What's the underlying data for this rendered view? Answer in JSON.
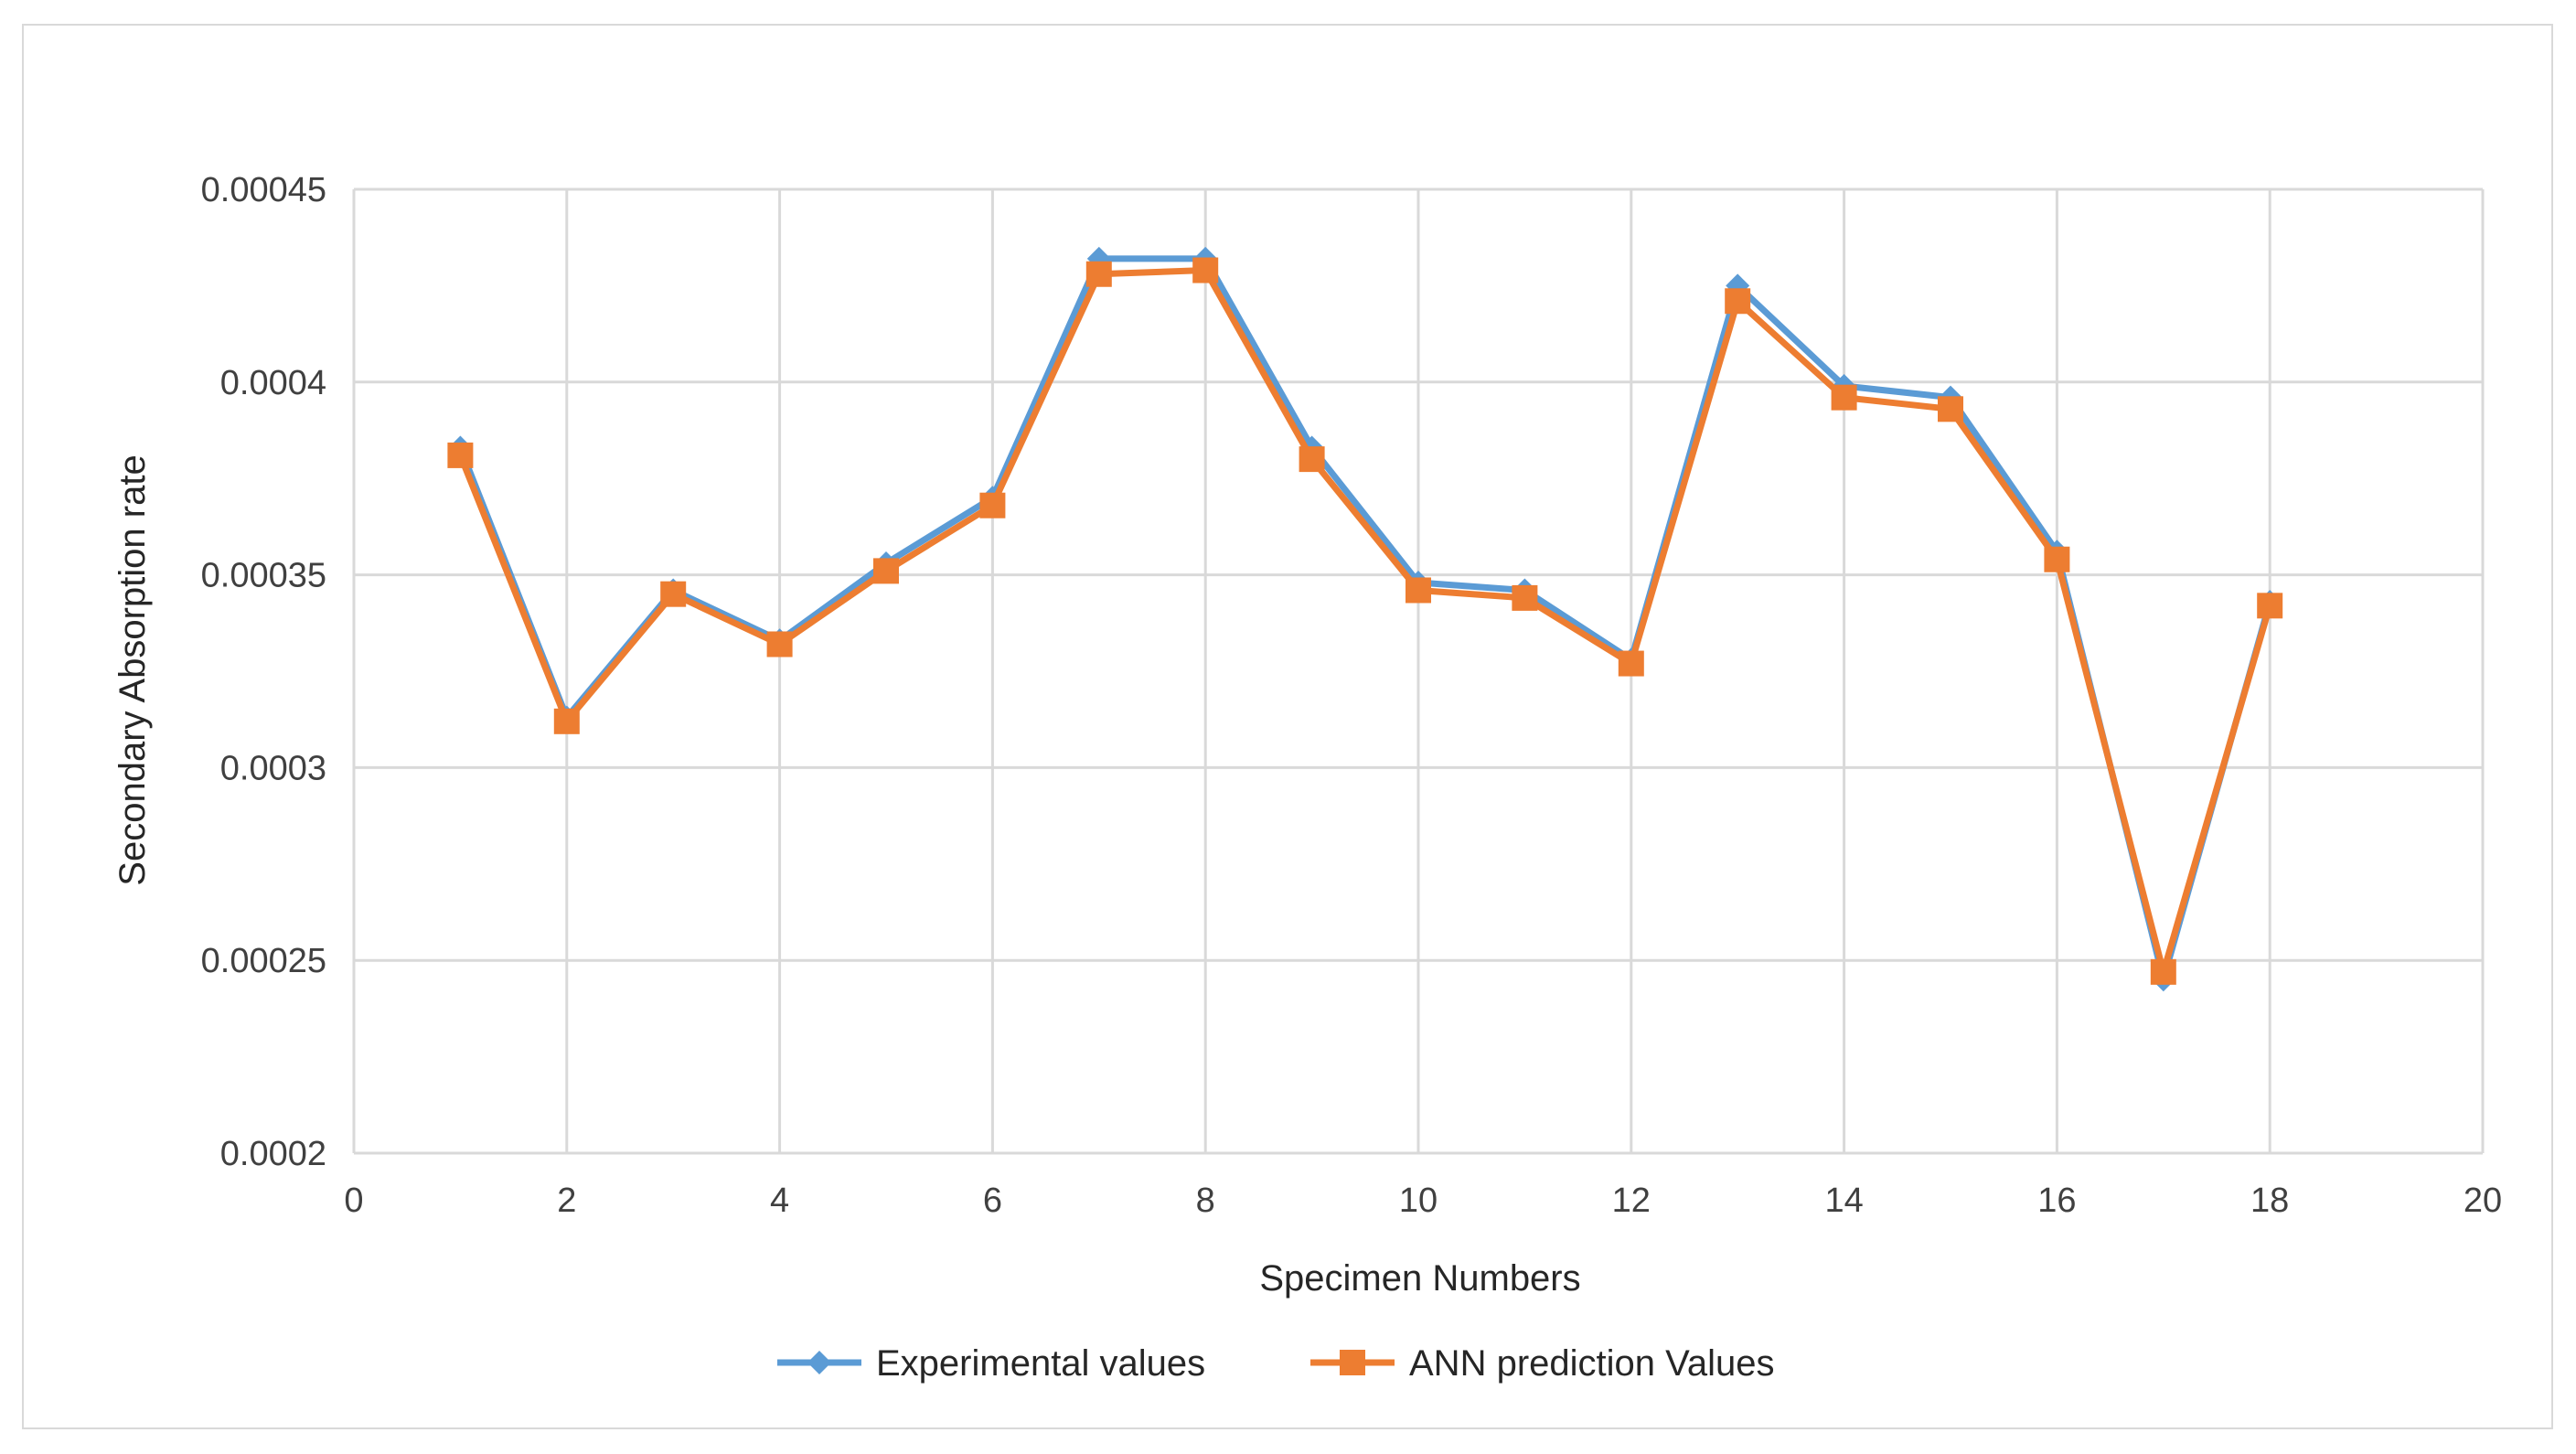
{
  "chart_data": {
    "type": "line",
    "title": "",
    "xlabel": "Specimen Numbers",
    "ylabel": "Secondary Absorption rate",
    "xlim": [
      0,
      20
    ],
    "ylim": [
      0.0002,
      0.00045
    ],
    "xticks": [
      0,
      2,
      4,
      6,
      8,
      10,
      12,
      14,
      16,
      18,
      20
    ],
    "yticks": [
      0.0002,
      0.00025,
      0.0003,
      0.00035,
      0.0004,
      0.00045
    ],
    "ytick_labels": [
      "0.0002",
      "0.00025",
      "0.0003",
      "0.00035",
      "0.0004",
      "0.00045"
    ],
    "grid": true,
    "legend_position": "bottom",
    "x": [
      1,
      2,
      3,
      4,
      5,
      6,
      7,
      8,
      9,
      10,
      11,
      12,
      13,
      14,
      15,
      16,
      17,
      18
    ],
    "series": [
      {
        "name": "Experimental values",
        "color": "#5b9bd5",
        "marker": "diamond",
        "values": [
          0.000383,
          0.000313,
          0.000346,
          0.000333,
          0.000353,
          0.00037,
          0.000432,
          0.000432,
          0.000383,
          0.000348,
          0.000346,
          0.000328,
          0.000425,
          0.000399,
          0.000396,
          0.000356,
          0.000245,
          0.000343
        ]
      },
      {
        "name": "ANN prediction Values",
        "color": "#ed7d31",
        "marker": "square",
        "values": [
          0.000381,
          0.000312,
          0.000345,
          0.000332,
          0.000351,
          0.000368,
          0.000428,
          0.000429,
          0.00038,
          0.000346,
          0.000344,
          0.000327,
          0.000421,
          0.000396,
          0.000393,
          0.000354,
          0.000247,
          0.000342
        ]
      }
    ]
  }
}
